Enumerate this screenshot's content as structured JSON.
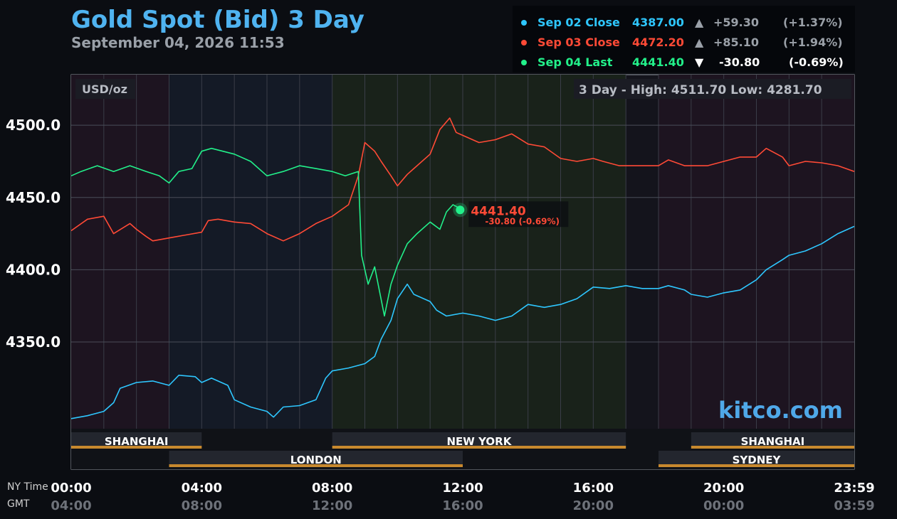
{
  "header": {
    "title": "Gold Spot (Bid) 3 Day",
    "datetime": "September 04, 2026 11:53"
  },
  "legend": [
    {
      "label": "Sep 02 Close",
      "value": "4387.00",
      "arrow": "▲",
      "change": "+59.30",
      "pct": "(+1.37%)",
      "color": "#2ec7ff",
      "change_color": "#9aa0a8"
    },
    {
      "label": "Sep 03 Close",
      "value": "4472.20",
      "arrow": "▲",
      "change": "+85.10",
      "pct": "(+1.94%)",
      "color": "#ff4a36",
      "change_color": "#9aa0a8"
    },
    {
      "label": "Sep 04 Last",
      "value": "4441.40",
      "arrow": "▼",
      "change": "-30.80",
      "pct": "(-0.69%)",
      "color": "#22f08a",
      "change_color": "#ffffff"
    }
  ],
  "chart_data": {
    "type": "line",
    "unit_label": "USD/oz",
    "high_low": "3 Day - High: 4511.70  Low: 4281.70",
    "ylim": [
      4290,
      4535
    ],
    "y_ticks": [
      4350.0,
      4400.0,
      4450.0,
      4500.0
    ],
    "y_tick_labels": [
      "4350.0",
      "4400.0",
      "4450.0",
      "4500.0"
    ],
    "x_range_hours": [
      0,
      24
    ],
    "x_ticks": [
      {
        "h": 0,
        "ny": "00:00",
        "gmt": "04:00"
      },
      {
        "h": 4,
        "ny": "04:00",
        "gmt": "08:00"
      },
      {
        "h": 8,
        "ny": "08:00",
        "gmt": "12:00"
      },
      {
        "h": 12,
        "ny": "12:00",
        "gmt": "16:00"
      },
      {
        "h": 16,
        "ny": "16:00",
        "gmt": "20:00"
      },
      {
        "h": 20,
        "ny": "20:00",
        "gmt": "00:00"
      },
      {
        "h": 24,
        "ny": "23:59",
        "gmt": "03:59"
      }
    ],
    "x_axis_labels": {
      "ny": "NY Time",
      "gmt": "GMT"
    },
    "series": [
      {
        "name": "Sep 02 Close",
        "color": "#2ec7ff",
        "points": [
          [
            0,
            4297
          ],
          [
            0.5,
            4299
          ],
          [
            1,
            4302
          ],
          [
            1.3,
            4308
          ],
          [
            1.5,
            4318
          ],
          [
            2,
            4322
          ],
          [
            2.5,
            4323
          ],
          [
            3,
            4320
          ],
          [
            3.3,
            4327
          ],
          [
            3.8,
            4326
          ],
          [
            4,
            4322
          ],
          [
            4.3,
            4325
          ],
          [
            4.8,
            4320
          ],
          [
            5,
            4310
          ],
          [
            5.5,
            4305
          ],
          [
            6,
            4302
          ],
          [
            6.2,
            4298
          ],
          [
            6.5,
            4305
          ],
          [
            7,
            4306
          ],
          [
            7.5,
            4310
          ],
          [
            7.8,
            4325
          ],
          [
            8,
            4330
          ],
          [
            8.5,
            4332
          ],
          [
            9,
            4335
          ],
          [
            9.3,
            4340
          ],
          [
            9.5,
            4352
          ],
          [
            9.8,
            4365
          ],
          [
            10,
            4380
          ],
          [
            10.3,
            4390
          ],
          [
            10.5,
            4383
          ],
          [
            11,
            4378
          ],
          [
            11.2,
            4372
          ],
          [
            11.5,
            4368
          ],
          [
            12,
            4370
          ],
          [
            12.5,
            4368
          ],
          [
            13,
            4365
          ],
          [
            13.5,
            4368
          ],
          [
            14,
            4376
          ],
          [
            14.5,
            4374
          ],
          [
            15,
            4376
          ],
          [
            15.5,
            4380
          ],
          [
            16,
            4388
          ],
          [
            16.5,
            4387
          ],
          [
            17,
            4389
          ],
          [
            17.5,
            4387
          ],
          [
            18,
            4387
          ],
          [
            18.3,
            4389
          ],
          [
            18.8,
            4386
          ],
          [
            19,
            4383
          ],
          [
            19.5,
            4381
          ],
          [
            20,
            4384
          ],
          [
            20.5,
            4386
          ],
          [
            21,
            4393
          ],
          [
            21.3,
            4400
          ],
          [
            21.8,
            4407
          ],
          [
            22,
            4410
          ],
          [
            22.5,
            4413
          ],
          [
            23,
            4418
          ],
          [
            23.5,
            4425
          ],
          [
            24,
            4430
          ]
        ]
      },
      {
        "name": "Sep 03 Close",
        "color": "#ff4a36",
        "points": [
          [
            0,
            4427
          ],
          [
            0.5,
            4435
          ],
          [
            1,
            4437
          ],
          [
            1.3,
            4425
          ],
          [
            1.8,
            4432
          ],
          [
            2,
            4428
          ],
          [
            2.3,
            4423
          ],
          [
            2.5,
            4420
          ],
          [
            3,
            4422
          ],
          [
            3.5,
            4424
          ],
          [
            4,
            4426
          ],
          [
            4.2,
            4434
          ],
          [
            4.5,
            4435
          ],
          [
            5,
            4433
          ],
          [
            5.5,
            4432
          ],
          [
            6,
            4425
          ],
          [
            6.5,
            4420
          ],
          [
            7,
            4425
          ],
          [
            7.5,
            4432
          ],
          [
            8,
            4437
          ],
          [
            8.5,
            4445
          ],
          [
            8.8,
            4465
          ],
          [
            9,
            4488
          ],
          [
            9.3,
            4482
          ],
          [
            9.5,
            4475
          ],
          [
            9.8,
            4465
          ],
          [
            10,
            4458
          ],
          [
            10.3,
            4466
          ],
          [
            10.5,
            4470
          ],
          [
            11,
            4480
          ],
          [
            11.3,
            4497
          ],
          [
            11.6,
            4505
          ],
          [
            11.8,
            4495
          ],
          [
            12,
            4493
          ],
          [
            12.5,
            4488
          ],
          [
            13,
            4490
          ],
          [
            13.5,
            4494
          ],
          [
            14,
            4487
          ],
          [
            14.5,
            4485
          ],
          [
            15,
            4477
          ],
          [
            15.5,
            4475
          ],
          [
            16,
            4477
          ],
          [
            16.3,
            4475
          ],
          [
            16.8,
            4472
          ],
          [
            17,
            4472
          ],
          [
            17.5,
            4472
          ],
          [
            18,
            4472
          ],
          [
            18.3,
            4476
          ],
          [
            18.8,
            4472
          ],
          [
            19.5,
            4472
          ],
          [
            20,
            4475
          ],
          [
            20.5,
            4478
          ],
          [
            21,
            4478
          ],
          [
            21.3,
            4484
          ],
          [
            21.8,
            4478
          ],
          [
            22,
            4472
          ],
          [
            22.5,
            4475
          ],
          [
            23,
            4474
          ],
          [
            23.5,
            4472
          ],
          [
            24,
            4468
          ]
        ]
      },
      {
        "name": "Sep 04 Last",
        "color": "#22f08a",
        "points": [
          [
            0,
            4465
          ],
          [
            0.3,
            4468
          ],
          [
            0.8,
            4472
          ],
          [
            1.3,
            4468
          ],
          [
            1.8,
            4472
          ],
          [
            2.3,
            4468
          ],
          [
            2.7,
            4465
          ],
          [
            3,
            4460
          ],
          [
            3.3,
            4468
          ],
          [
            3.7,
            4470
          ],
          [
            4,
            4482
          ],
          [
            4.3,
            4484
          ],
          [
            5,
            4480
          ],
          [
            5.5,
            4475
          ],
          [
            6,
            4465
          ],
          [
            6.5,
            4468
          ],
          [
            7,
            4472
          ],
          [
            7.5,
            4470
          ],
          [
            8,
            4468
          ],
          [
            8.4,
            4465
          ],
          [
            8.8,
            4468
          ],
          [
            8.9,
            4410
          ],
          [
            9.1,
            4390
          ],
          [
            9.3,
            4402
          ],
          [
            9.6,
            4368
          ],
          [
            9.8,
            4390
          ],
          [
            10,
            4403
          ],
          [
            10.3,
            4418
          ],
          [
            10.6,
            4425
          ],
          [
            11,
            4433
          ],
          [
            11.3,
            4428
          ],
          [
            11.5,
            4440
          ],
          [
            11.7,
            4445
          ],
          [
            12,
            4441.4
          ],
          [
            11.92,
            4441.4
          ]
        ]
      }
    ],
    "last_point": {
      "value_label": "4441.40",
      "change_label": "-30.80 (-0.69%)"
    },
    "sessions": [
      {
        "name": "SHANGHAI",
        "start": 0,
        "end": 4,
        "row": 1
      },
      {
        "name": "NEW YORK",
        "start": 8,
        "end": 17,
        "row": 1
      },
      {
        "name": "SHANGHAI",
        "start": 19,
        "end": 24,
        "row": 1
      },
      {
        "name": "LONDON",
        "start": 3,
        "end": 12,
        "row": 2
      },
      {
        "name": "SYDNEY",
        "start": 18,
        "end": 24,
        "row": 2
      }
    ],
    "grid": true,
    "watermark": "kitco.com"
  }
}
